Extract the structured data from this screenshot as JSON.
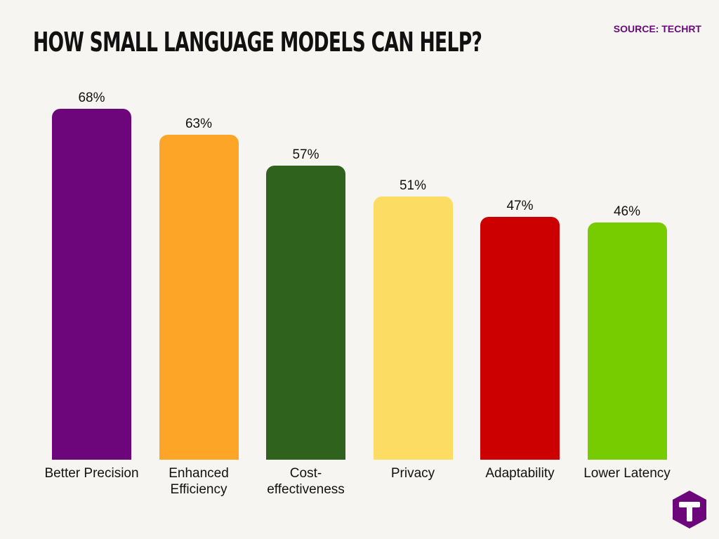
{
  "title": "HOW SMALL LANGUAGE MODELS CAN HELP?",
  "source": "SOURCE: TECHRT",
  "chart_data": {
    "type": "bar",
    "title": "HOW SMALL LANGUAGE MODELS CAN HELP?",
    "categories": [
      "Better Precision",
      "Enhanced Efficiency",
      "Cost-effectiveness",
      "Privacy",
      "Adaptability",
      "Lower Latency"
    ],
    "category_display": [
      [
        "Better Precision"
      ],
      [
        "Enhanced",
        "Efficiency"
      ],
      [
        "Cost-",
        "effectiveness"
      ],
      [
        "Privacy"
      ],
      [
        "Adaptability"
      ],
      [
        "Lower Latency"
      ]
    ],
    "values": [
      68,
      63,
      57,
      51,
      47,
      46
    ],
    "value_labels": [
      "68%",
      "63%",
      "57%",
      "51%",
      "47%",
      "46%"
    ],
    "colors": [
      "#6d067a",
      "#fca526",
      "#2f621d",
      "#fddc63",
      "#cc0000",
      "#77cc00"
    ],
    "xlabel": "",
    "ylabel": "",
    "ylim": [
      0,
      68
    ],
    "grid": false,
    "legend": "none"
  },
  "logo": {
    "icon": "techrt-logo-icon",
    "color": "#6d067a"
  }
}
